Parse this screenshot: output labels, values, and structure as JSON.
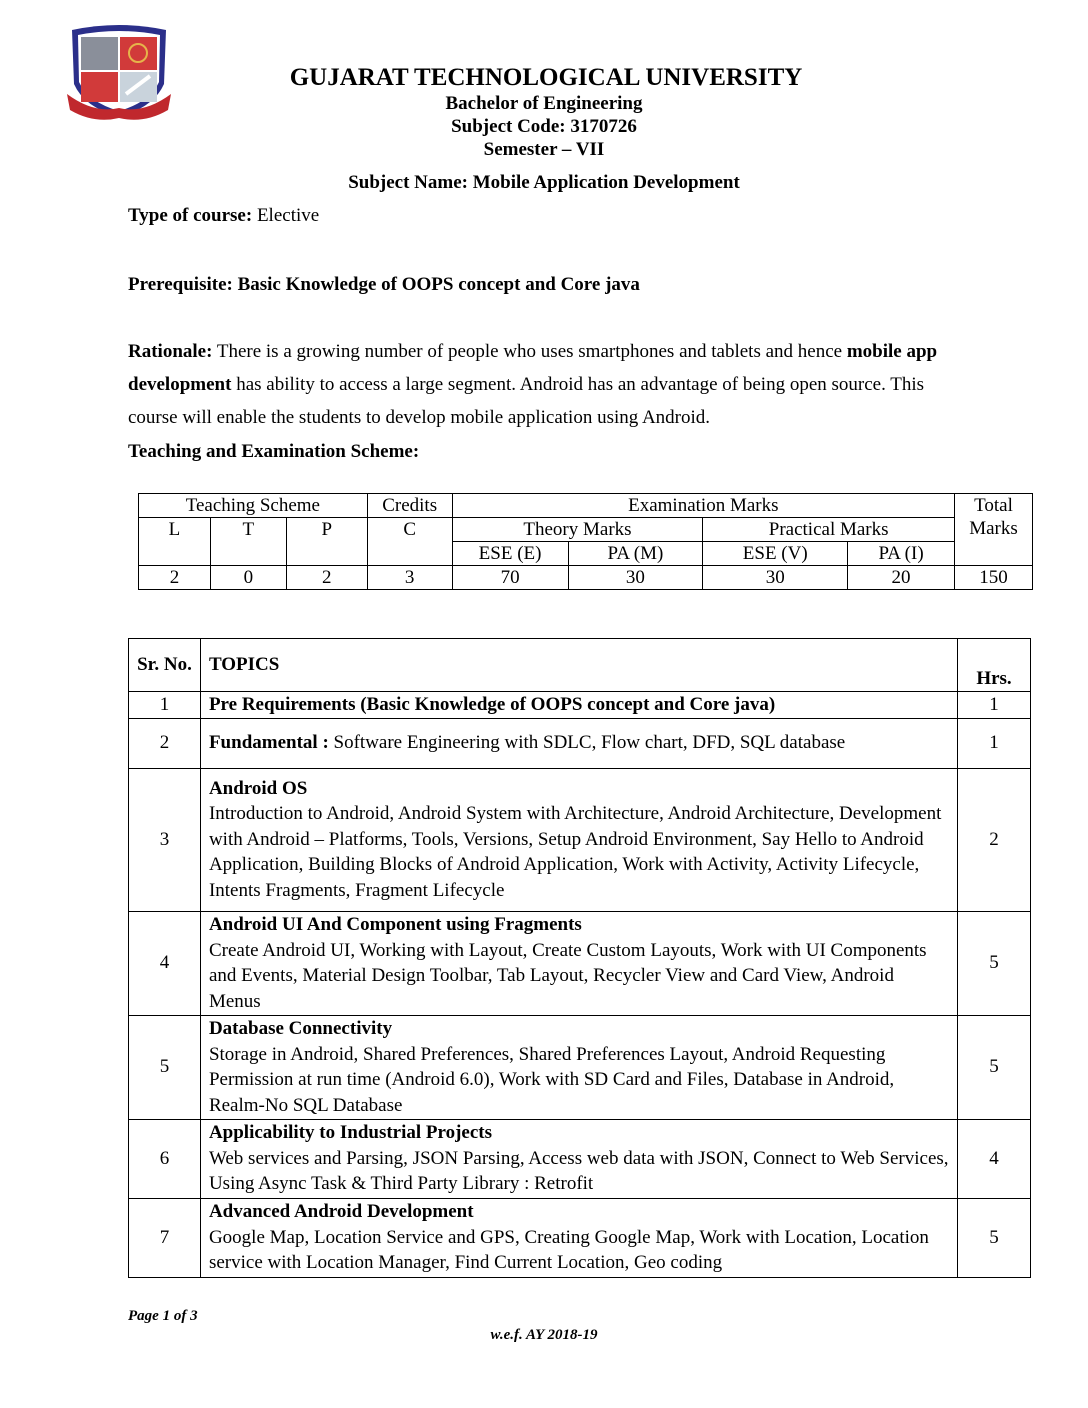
{
  "header": {
    "university": "GUJARAT TECHNOLOGICAL UNIVERSITY",
    "degree": "Bachelor of Engineering",
    "subject_code": "Subject Code: 3170726",
    "semester": "Semester – VII",
    "subject_name": "Subject Name: Mobile Application Development",
    "logo_motto": "Devanagari motto on ribbon"
  },
  "course": {
    "type_label": "Type of course:",
    "type_value": " Elective",
    "prereq": "Prerequisite: Basic Knowledge of OOPS concept and Core java",
    "rationale_label": "Rationale:",
    "rationale_1": " There is a growing number of people who uses smartphones and tablets and hence ",
    "rationale_bold": "mobile app development",
    "rationale_2": " has ability to access a large segment. Android has an advantage of being open source. This course will enable the students to develop mobile application using Android.",
    "scheme_heading": "Teaching and Examination Scheme:"
  },
  "scheme": {
    "teaching": "Teaching Scheme",
    "credits": "Credits",
    "exam": "Examination Marks",
    "total": "Total Marks",
    "L": "L",
    "T": "T",
    "P": "P",
    "C": "C",
    "theory": "Theory Marks",
    "practical": "Practical Marks",
    "ese_e": "ESE (E)",
    "pa_m": "PA (M)",
    "ese_v": "ESE (V)",
    "pa_i": "PA (I)",
    "values": [
      "2",
      "0",
      "2",
      "3",
      "70",
      "30",
      "30",
      "20",
      "150"
    ]
  },
  "topics": {
    "h_sr": "Sr. No.",
    "h_topics": "TOPICS",
    "h_hrs": "Hrs.",
    "rows": [
      {
        "n": "1",
        "title": "Pre Requirements (Basic Knowledge of OOPS concept and Core java)",
        "body": "",
        "hrs": "1"
      },
      {
        "n": "2",
        "title": "Fundamental :",
        "body": " Software Engineering with SDLC, Flow chart, DFD, SQL database",
        "hrs": "1"
      },
      {
        "n": "3",
        "title": "Android OS",
        "body": "Introduction to Android, Android System with Architecture, Android Architecture, Development with Android – Platforms, Tools, Versions, Setup Android Environment, Say Hello to Android Application, Building Blocks of Android Application, Work with Activity, Activity Lifecycle, Intents Fragments, Fragment Lifecycle",
        "hrs": "2"
      },
      {
        "n": "4",
        "title": "Android UI And Component using Fragments",
        "body": "Create Android UI, Working with Layout, Create Custom Layouts, Work with UI Components and Events, Material Design Toolbar, Tab Layout, Recycler View and Card View, Android Menus",
        "hrs": "5"
      },
      {
        "n": "5",
        "title": "Database Connectivity",
        "body": "Storage in Android, Shared Preferences, Shared Preferences Layout, Android Requesting Permission at run time (Android 6.0), Work with SD Card and Files, Database in Android, Realm-No SQL Database",
        "hrs": "5"
      },
      {
        "n": "6",
        "title": "Applicability to Industrial Projects",
        "body": "Web services and Parsing, JSON Parsing, Access web data with JSON, Connect to Web Services, Using Async Task & Third Party Library : Retrofit",
        "hrs": "4"
      },
      {
        "n": "7",
        "title": "Advanced Android Development",
        "body": "Google Map, Location Service and GPS, Creating Google Map, Work with Location, Location service with Location Manager, Find Current Location, Geo coding",
        "hrs": "5"
      }
    ]
  },
  "footer": {
    "page": "Page 1 of 3",
    "wef": "w.e.f. AY 2018-19"
  }
}
